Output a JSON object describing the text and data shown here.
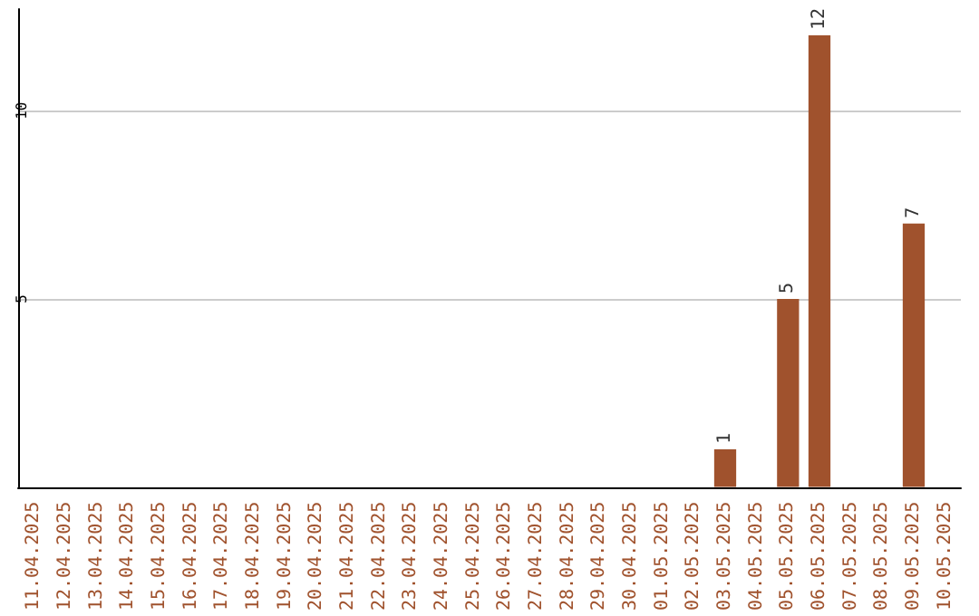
{
  "chart_data": {
    "type": "bar",
    "categories": [
      "11.04.2025",
      "12.04.2025",
      "13.04.2025",
      "14.04.2025",
      "15.04.2025",
      "16.04.2025",
      "17.04.2025",
      "18.04.2025",
      "19.04.2025",
      "20.04.2025",
      "21.04.2025",
      "22.04.2025",
      "23.04.2025",
      "24.04.2025",
      "25.04.2025",
      "26.04.2025",
      "27.04.2025",
      "28.04.2025",
      "29.04.2025",
      "30.04.2025",
      "01.05.2025",
      "02.05.2025",
      "03.05.2025",
      "04.05.2025",
      "05.05.2025",
      "06.05.2025",
      "07.05.2025",
      "08.05.2025",
      "09.05.2025",
      "10.05.2025"
    ],
    "values": [
      null,
      null,
      null,
      null,
      null,
      null,
      null,
      null,
      null,
      null,
      null,
      null,
      null,
      null,
      null,
      null,
      null,
      null,
      null,
      null,
      null,
      null,
      1,
      null,
      5,
      12,
      null,
      null,
      7,
      null
    ],
    "color": "#a0522d",
    "ylim": [
      0,
      12.7
    ],
    "yticks": [
      5,
      10
    ],
    "grid": "y",
    "data_labels": true
  }
}
